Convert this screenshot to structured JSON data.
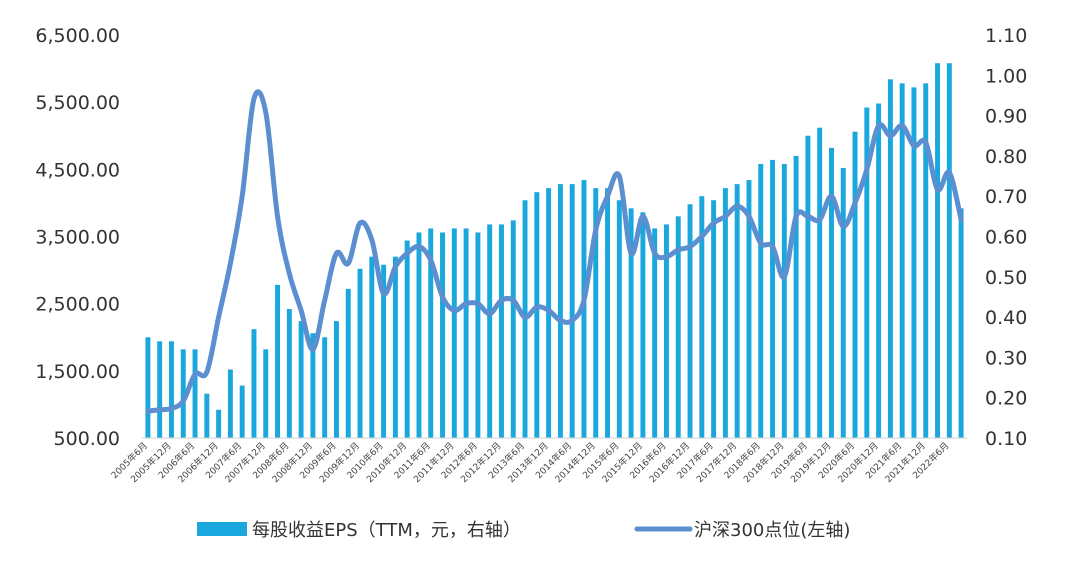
{
  "chart_data": {
    "type": "bar+line",
    "title": "",
    "x": [
      "2005年6月",
      "2005年9月",
      "2005年12月",
      "2006年3月",
      "2006年6月",
      "2006年9月",
      "2006年12月",
      "2007年3月",
      "2007年6月",
      "2007年9月",
      "2007年12月",
      "2008年3月",
      "2008年6月",
      "2008年9月",
      "2008年12月",
      "2009年3月",
      "2009年6月",
      "2009年9月",
      "2009年12月",
      "2010年3月",
      "2010年6月",
      "2010年9月",
      "2010年12月",
      "2011年3月",
      "2011年6月",
      "2011年9月",
      "2011年12月",
      "2012年3月",
      "2012年6月",
      "2012年9月",
      "2012年12月",
      "2013年3月",
      "2013年6月",
      "2013年9月",
      "2013年12月",
      "2014年3月",
      "2014年6月",
      "2014年9月",
      "2014年12月",
      "2015年3月",
      "2015年6月",
      "2015年9月",
      "2015年12月",
      "2016年3月",
      "2016年6月",
      "2016年9月",
      "2016年12月",
      "2017年3月",
      "2017年6月",
      "2017年9月",
      "2017年12月",
      "2018年3月",
      "2018年6月",
      "2018年9月",
      "2018年12月",
      "2019年3月",
      "2019年6月",
      "2019年9月",
      "2019年12月",
      "2020年3月",
      "2020年6月",
      "2020年9月",
      "2020年12月",
      "2021年3月",
      "2021年6月",
      "2021年9月",
      "2021年12月",
      "2022年3月",
      "2022年6月",
      "2022年9月"
    ],
    "tick_labels": [
      "2005年6月",
      "2005年12月",
      "2006年6月",
      "2006年12月",
      "2007年6月",
      "2007年12月",
      "2008年6月",
      "2008年12月",
      "2009年6月",
      "2009年12月",
      "2010年6月",
      "2010年12月",
      "2011年6月",
      "2011年12月",
      "2012年6月",
      "2012年12月",
      "2013年6月",
      "2013年12月",
      "2014年6月",
      "2014年12月",
      "2015年6月",
      "2015年12月",
      "2016年6月",
      "2016年12月",
      "2017年6月",
      "2017年12月",
      "2018年6月",
      "2018年12月",
      "2019年6月",
      "2019年12月",
      "2020年6月",
      "2020年12月",
      "2021年6月",
      "2021年12月",
      "2022年6月"
    ],
    "series": [
      {
        "name": "每股收益EPS（TTM，元，右轴）",
        "type": "bar",
        "axis": "right",
        "color": "#1aa7dd",
        "values": [
          0.35,
          0.34,
          0.34,
          0.32,
          0.32,
          0.21,
          0.17,
          0.27,
          0.23,
          0.37,
          0.32,
          0.48,
          0.42,
          0.39,
          0.36,
          0.35,
          0.39,
          0.47,
          0.52,
          0.55,
          0.53,
          0.55,
          0.59,
          0.61,
          0.62,
          0.61,
          0.62,
          0.62,
          0.61,
          0.63,
          0.63,
          0.64,
          0.69,
          0.71,
          0.72,
          0.73,
          0.73,
          0.74,
          0.72,
          0.72,
          0.69,
          0.67,
          0.66,
          0.62,
          0.63,
          0.65,
          0.68,
          0.7,
          0.69,
          0.72,
          0.73,
          0.74,
          0.78,
          0.79,
          0.78,
          0.8,
          0.85,
          0.87,
          0.82,
          0.77,
          0.86,
          0.92,
          0.93,
          0.99,
          0.98,
          0.97,
          0.98,
          1.03,
          1.03,
          0.67
        ]
      },
      {
        "name": "沪深300点位(左轴)",
        "type": "line",
        "axis": "left",
        "color": "#5b8fd0",
        "values": [
          900,
          920,
          940,
          1050,
          1450,
          1480,
          2300,
          3100,
          4100,
          5550,
          5350,
          3800,
          2950,
          2400,
          1820,
          2550,
          3250,
          3100,
          3700,
          3450,
          2650,
          3050,
          3250,
          3350,
          3150,
          2600,
          2400,
          2500,
          2500,
          2350,
          2550,
          2550,
          2300,
          2450,
          2400,
          2250,
          2250,
          2550,
          3600,
          4100,
          4400,
          3250,
          3800,
          3250,
          3200,
          3300,
          3350,
          3500,
          3700,
          3800,
          3950,
          3800,
          3400,
          3350,
          2900,
          3800,
          3800,
          3750,
          4100,
          3650,
          4000,
          4500,
          5150,
          5000,
          5150,
          4850,
          4900,
          4200,
          4450,
          3750
        ]
      }
    ],
    "y_left": {
      "min": 500,
      "max": 6500,
      "ticks": [
        "6,500.00",
        "5,500.00",
        "4,500.00",
        "3,500.00",
        "2,500.00",
        "1,500.00",
        "500.00"
      ],
      "tick_values": [
        6500,
        5500,
        4500,
        3500,
        2500,
        1500,
        500
      ]
    },
    "y_right": {
      "min": 0.1,
      "max": 1.1,
      "ticks": [
        "1.10",
        "1.00",
        "0.90",
        "0.80",
        "0.70",
        "0.60",
        "0.50",
        "0.40",
        "0.30",
        "0.20",
        "0.10"
      ],
      "tick_values": [
        1.1,
        1.0,
        0.9,
        0.8,
        0.7,
        0.6,
        0.5,
        0.4,
        0.3,
        0.2,
        0.1
      ]
    },
    "grid": false,
    "legend_position": "bottom"
  }
}
